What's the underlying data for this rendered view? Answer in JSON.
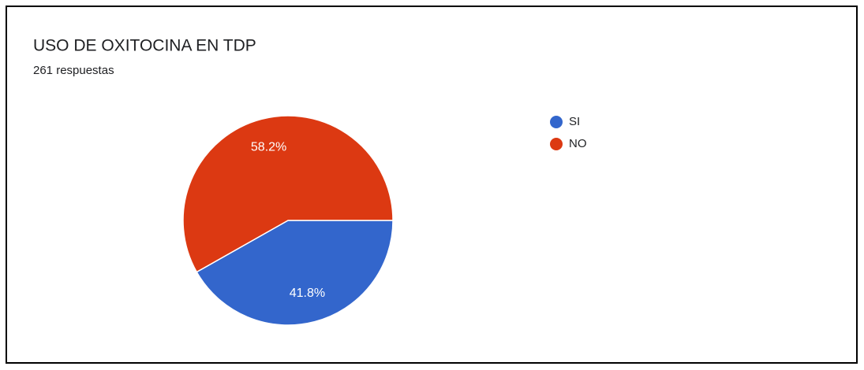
{
  "chart_data": {
    "type": "pie",
    "title": "USO DE OXITOCINA EN TDP",
    "subtitle": "261 respuestas",
    "categories": [
      "SI",
      "NO"
    ],
    "values": [
      41.8,
      58.2
    ],
    "value_labels": [
      "41.8%",
      "58.2%"
    ],
    "colors": [
      "#3366cc",
      "#dc3912"
    ],
    "legend": "right"
  }
}
